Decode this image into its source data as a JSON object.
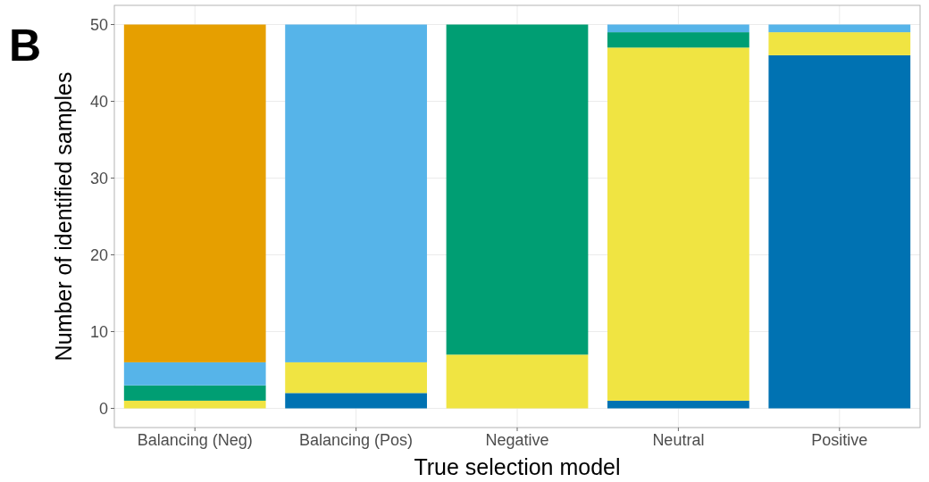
{
  "chart_data": {
    "type": "bar",
    "title": "B",
    "xlabel": "True selection model",
    "ylabel": "Number of identified samples",
    "categories": [
      "Balancing (Neg)",
      "Balancing (Pos)",
      "Negative",
      "Neutral",
      "Positive"
    ],
    "stacked": true,
    "series": [
      {
        "color": "#0072b2",
        "values": [
          0,
          2,
          0,
          1,
          46
        ]
      },
      {
        "color": "#f0e442",
        "values": [
          1,
          4,
          7,
          46,
          3
        ]
      },
      {
        "color": "#009e73",
        "values": [
          2,
          0,
          43,
          2,
          0
        ]
      },
      {
        "color": "#56b4e9",
        "values": [
          3,
          44,
          0,
          1,
          1
        ]
      },
      {
        "color": "#e69f00",
        "values": [
          44,
          0,
          0,
          0,
          0
        ]
      }
    ],
    "ylim": [
      -2.5,
      52.5
    ],
    "yticks": [
      0,
      10,
      20,
      30,
      40,
      50
    ],
    "grid": true
  }
}
